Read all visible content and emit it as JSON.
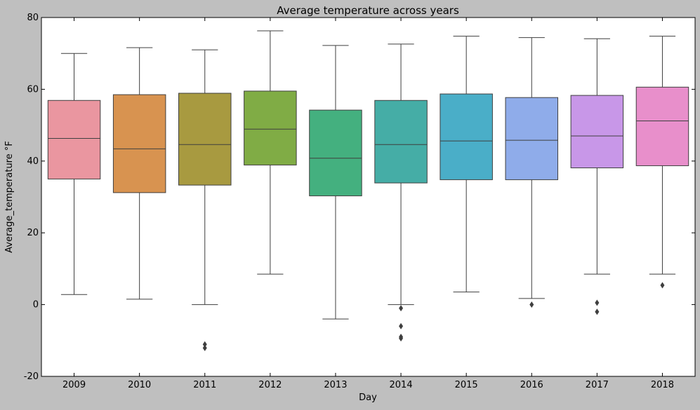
{
  "chart_data": {
    "type": "box",
    "title": "Average temperature across years",
    "xlabel": "Day",
    "ylabel": "Average_temperature °F",
    "ylim": [
      -20,
      80
    ],
    "yticks": [
      -20,
      0,
      20,
      40,
      60,
      80
    ],
    "grid": false,
    "legend": "none",
    "categories": [
      "2009",
      "2010",
      "2011",
      "2012",
      "2013",
      "2014",
      "2015",
      "2016",
      "2017",
      "2018"
    ],
    "boxes": [
      {
        "year": "2009",
        "whisker_low": 2.8,
        "q1": 35.0,
        "median": 46.3,
        "q3": 56.9,
        "whisker_high": 70.0,
        "outliers": [],
        "color": "#ea96a0"
      },
      {
        "year": "2010",
        "whisker_low": 1.5,
        "q1": 31.2,
        "median": 43.4,
        "q3": 58.5,
        "whisker_high": 71.6,
        "outliers": [],
        "color": "#d89350"
      },
      {
        "year": "2011",
        "whisker_low": 0.0,
        "q1": 33.3,
        "median": 44.6,
        "q3": 58.9,
        "whisker_high": 71.0,
        "outliers": [
          -11.1,
          -12.1
        ],
        "color": "#a89a40"
      },
      {
        "year": "2012",
        "whisker_low": 8.5,
        "q1": 38.9,
        "median": 48.9,
        "q3": 59.5,
        "whisker_high": 76.3,
        "outliers": [],
        "color": "#80ac45"
      },
      {
        "year": "2013",
        "whisker_low": -4.0,
        "q1": 30.3,
        "median": 40.8,
        "q3": 54.2,
        "whisker_high": 72.2,
        "outliers": [],
        "color": "#44b07f"
      },
      {
        "year": "2014",
        "whisker_low": 0.0,
        "q1": 33.9,
        "median": 44.6,
        "q3": 56.9,
        "whisker_high": 72.6,
        "outliers": [
          -1.0,
          -6.0,
          -9.0,
          -9.4
        ],
        "color": "#45ada6"
      },
      {
        "year": "2015",
        "whisker_low": 3.5,
        "q1": 34.8,
        "median": 45.6,
        "q3": 58.7,
        "whisker_high": 74.8,
        "outliers": [],
        "color": "#4aaec8"
      },
      {
        "year": "2016",
        "whisker_low": 1.7,
        "q1": 34.8,
        "median": 45.8,
        "q3": 57.7,
        "whisker_high": 74.4,
        "outliers": [
          0.0
        ],
        "color": "#8facea"
      },
      {
        "year": "2017",
        "whisker_low": 8.5,
        "q1": 38.1,
        "median": 47.0,
        "q3": 58.3,
        "whisker_high": 74.1,
        "outliers": [
          0.5,
          -2.0
        ],
        "color": "#c897e8"
      },
      {
        "year": "2018",
        "whisker_low": 8.5,
        "q1": 38.7,
        "median": 51.2,
        "q3": 60.6,
        "whisker_high": 74.8,
        "outliers": [
          5.4
        ],
        "color": "#e88fcb"
      }
    ]
  }
}
